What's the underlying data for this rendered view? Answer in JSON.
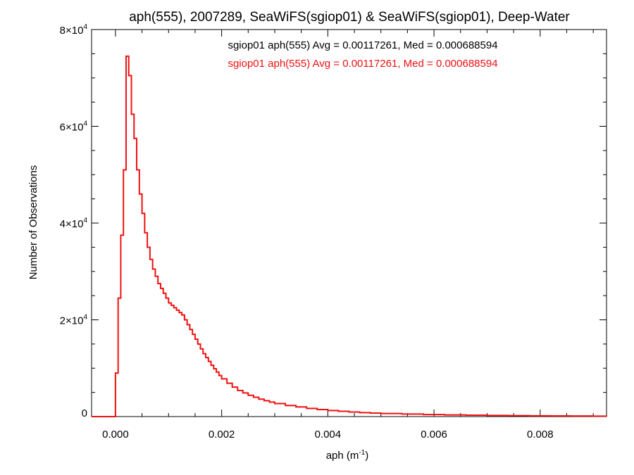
{
  "chart_data": {
    "type": "line",
    "step": true,
    "title": "aph(555), 2007289, SeaWiFS(sgiop01) & SeaWiFS(sgiop01), Deep-Water",
    "xlabel": "aph (m",
    "xlabel_sup": "-1",
    "xlabel_suffix": ")",
    "ylabel": "Number of Observations",
    "xlim": [
      -0.00045,
      0.00925
    ],
    "ylim": [
      0,
      80000
    ],
    "grid": false,
    "x_ticks": [
      {
        "value": 0.0,
        "label": "0.000"
      },
      {
        "value": 0.002,
        "label": "0.002"
      },
      {
        "value": 0.004,
        "label": "0.004"
      },
      {
        "value": 0.006,
        "label": "0.006"
      },
      {
        "value": 0.008,
        "label": "0.008"
      }
    ],
    "y_ticks": [
      {
        "value": 0,
        "label": "0",
        "sup": ""
      },
      {
        "value": 20000,
        "label": "2×10",
        "sup": "4"
      },
      {
        "value": 40000,
        "label": "4×10",
        "sup": "4"
      },
      {
        "value": 60000,
        "label": "6×10",
        "sup": "4"
      },
      {
        "value": 80000,
        "label": "8×10",
        "sup": "4"
      }
    ],
    "annotations": [
      {
        "text": "sgiop01 aph(555) Avg = 0.00117261, Med = 0.000688594",
        "color": "#000000"
      },
      {
        "text": "sgiop01 aph(555) Avg = 0.00117261, Med = 0.000688594",
        "color": "#ee1111"
      }
    ],
    "series": [
      {
        "color": "#ee1111",
        "x": [
          -0.00045,
          -5e-05,
          0.0,
          5e-05,
          0.0001,
          0.00015,
          0.0002,
          0.00025,
          0.0003,
          0.00035,
          0.0004,
          0.00045,
          0.0005,
          0.00055,
          0.0006,
          0.00065,
          0.0007,
          0.00075,
          0.0008,
          0.00085,
          0.0009,
          0.00095,
          0.001,
          0.00105,
          0.0011,
          0.00115,
          0.0012,
          0.00125,
          0.0013,
          0.00135,
          0.0014,
          0.00145,
          0.0015,
          0.00155,
          0.0016,
          0.00165,
          0.0017,
          0.00175,
          0.0018,
          0.00185,
          0.0019,
          0.00195,
          0.002,
          0.0021,
          0.0022,
          0.0023,
          0.0024,
          0.0025,
          0.0026,
          0.0027,
          0.0028,
          0.0029,
          0.003,
          0.0032,
          0.0034,
          0.0036,
          0.0038,
          0.004,
          0.0042,
          0.0044,
          0.0046,
          0.0048,
          0.005,
          0.0054,
          0.0058,
          0.0062,
          0.0066,
          0.007,
          0.0074,
          0.0078,
          0.0082,
          0.0086,
          0.009,
          0.00925
        ],
        "y": [
          0,
          0,
          9000,
          24500,
          37500,
          51000,
          74500,
          70500,
          62500,
          57500,
          51000,
          46000,
          42000,
          38000,
          35000,
          32500,
          30500,
          29000,
          27500,
          26500,
          25500,
          24500,
          23500,
          23000,
          22500,
          22000,
          21500,
          21000,
          20000,
          19000,
          18000,
          17000,
          16000,
          15000,
          14000,
          13000,
          12200,
          11400,
          10600,
          9900,
          9200,
          8500,
          7800,
          6900,
          6100,
          5400,
          4900,
          4400,
          4000,
          3600,
          3300,
          3000,
          2700,
          2300,
          2000,
          1700,
          1450,
          1250,
          1100,
          950,
          820,
          720,
          640,
          520,
          420,
          350,
          290,
          240,
          200,
          170,
          140,
          120,
          100,
          90
        ]
      }
    ]
  }
}
